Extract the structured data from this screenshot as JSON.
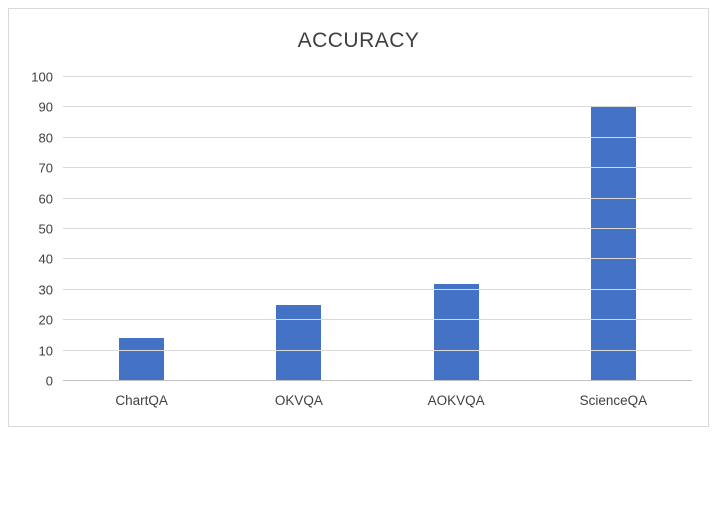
{
  "chart_data": {
    "type": "bar",
    "title": "ACCURACY",
    "categories": [
      "ChartQA",
      "OKVQA",
      "AOKVQA",
      "ScienceQA"
    ],
    "values": [
      14,
      25,
      32,
      90
    ],
    "xlabel": "",
    "ylabel": "",
    "ylim": [
      0,
      100
    ],
    "yticks": [
      0,
      10,
      20,
      30,
      40,
      50,
      60,
      70,
      80,
      90,
      100
    ],
    "bar_color": "#4472C4",
    "gridline_color": "#D9D9D9",
    "axis_line_color": "#BFBFBF",
    "title_color": "#404040",
    "tick_label_color": "#404040",
    "grid": true,
    "legend": "none"
  }
}
